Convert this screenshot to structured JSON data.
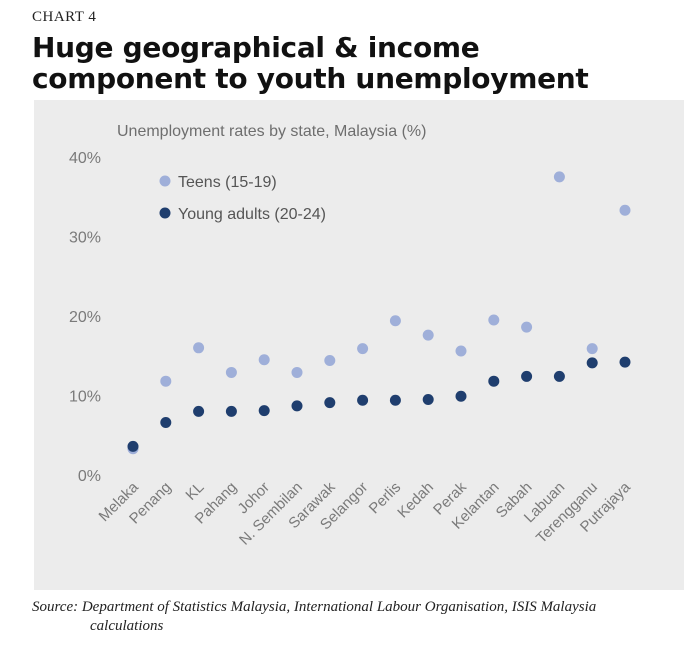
{
  "eyebrow": "CHART 4",
  "headline_line1": "Huge geographical & income",
  "headline_line2": "component to youth unemployment",
  "source_line1": "Source: Department of Statistics Malaysia, International Labour Organisation, ISIS Malaysia",
  "source_line2": "calculations",
  "colors": {
    "teens": "#9fafd9",
    "young_adults": "#1f3e6e",
    "panel": "#ececec",
    "axis_text": "#7a7a7a"
  },
  "chart_data": {
    "type": "scatter",
    "title": "Unemployment rates by state, Malaysia (%)",
    "xlabel": "",
    "ylabel": "",
    "categories": [
      "Melaka",
      "Penang",
      "KL",
      "Pahang",
      "Johor",
      "N. Sembilan",
      "Sarawak",
      "Selangor",
      "Perlis",
      "Kedah",
      "Perak",
      "Kelantan",
      "Sabah",
      "Labuan",
      "Terengganu",
      "Putrajaya"
    ],
    "ylim": [
      0,
      40
    ],
    "yticks": [
      0,
      10,
      20,
      30,
      40
    ],
    "ytick_labels": [
      "0%",
      "10%",
      "20%",
      "30%",
      "40%"
    ],
    "grid": false,
    "legend_position": "top-left",
    "series": [
      {
        "name": "Teens (15-19)",
        "values": [
          3.3,
          11.8,
          16.0,
          12.9,
          14.5,
          12.9,
          14.4,
          15.9,
          19.4,
          17.6,
          15.6,
          19.5,
          18.6,
          37.5,
          15.9,
          33.3
        ]
      },
      {
        "name": "Young adults (20-24)",
        "values": [
          3.6,
          6.6,
          8.0,
          8.0,
          8.1,
          8.7,
          9.1,
          9.4,
          9.4,
          9.5,
          9.9,
          11.8,
          12.4,
          12.4,
          14.1,
          14.2
        ]
      }
    ]
  }
}
